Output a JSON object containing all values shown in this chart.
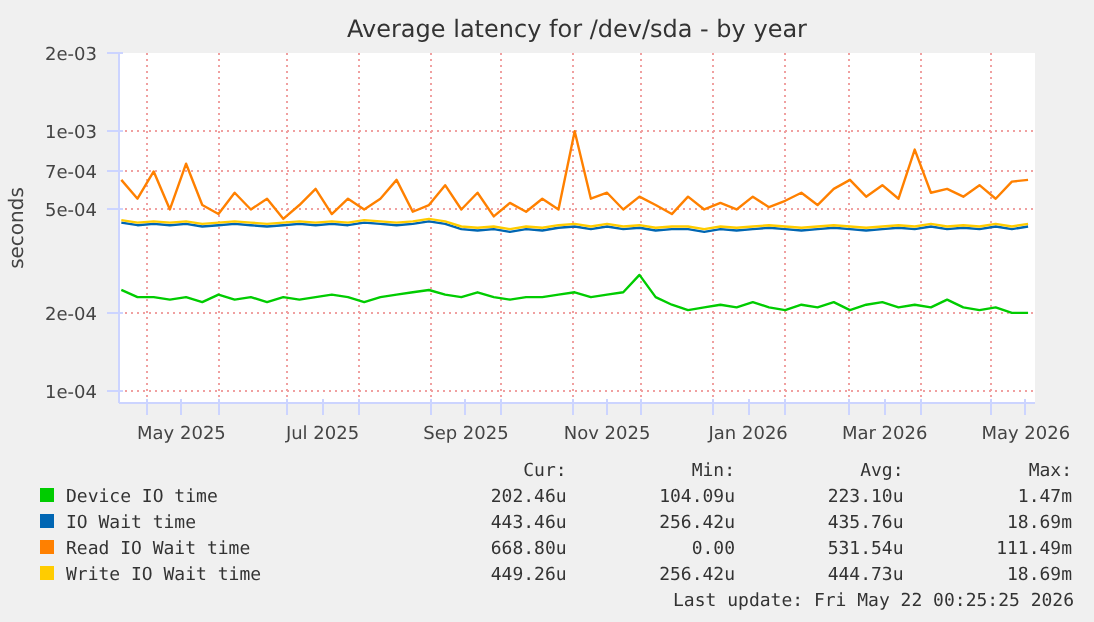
{
  "chart_data": {
    "type": "line",
    "title": "Average latency for /dev/sda - by year",
    "ylabel": "seconds",
    "log": "y",
    "grid": true,
    "legend": "bottom",
    "line_style": "solid",
    "x": [
      "2025-04-20",
      "2025-04-27",
      "2025-05-04",
      "2025-05-11",
      "2025-05-18",
      "2025-05-25",
      "2025-06-01",
      "2025-06-08",
      "2025-06-15",
      "2025-06-22",
      "2025-06-29",
      "2025-07-06",
      "2025-07-13",
      "2025-07-20",
      "2025-07-27",
      "2025-08-03",
      "2025-08-10",
      "2025-08-17",
      "2025-08-24",
      "2025-08-31",
      "2025-09-07",
      "2025-09-14",
      "2025-09-21",
      "2025-09-28",
      "2025-10-05",
      "2025-10-12",
      "2025-10-19",
      "2025-10-26",
      "2025-11-02",
      "2025-11-09",
      "2025-11-16",
      "2025-11-23",
      "2025-11-30",
      "2025-12-07",
      "2025-12-14",
      "2025-12-21",
      "2025-12-28",
      "2026-01-04",
      "2026-01-11",
      "2026-01-18",
      "2026-01-25",
      "2026-02-01",
      "2026-02-08",
      "2026-02-15",
      "2026-02-22",
      "2026-03-01",
      "2026-03-08",
      "2026-03-15",
      "2026-03-22",
      "2026-03-29",
      "2026-04-05",
      "2026-04-12",
      "2026-04-19",
      "2026-04-26",
      "2026-05-03",
      "2026-05-10",
      "2026-05-17"
    ],
    "xlim": [
      "2025-04-19",
      "2026-05-20"
    ],
    "xticks": [
      {
        "value": "2025-05-01",
        "label": null
      },
      {
        "value": "2025-05-16",
        "label": "May 2025"
      },
      {
        "value": "2025-06-01",
        "label": null
      },
      {
        "value": "2025-07-01",
        "label": null
      },
      {
        "value": "2025-07-16",
        "label": "Jul 2025"
      },
      {
        "value": "2025-08-01",
        "label": null
      },
      {
        "value": "2025-09-01",
        "label": null
      },
      {
        "value": "2025-09-16",
        "label": "Sep 2025"
      },
      {
        "value": "2025-10-01",
        "label": null
      },
      {
        "value": "2025-11-01",
        "label": null
      },
      {
        "value": "2025-11-16",
        "label": "Nov 2025"
      },
      {
        "value": "2025-12-01",
        "label": null
      },
      {
        "value": "2026-01-01",
        "label": null
      },
      {
        "value": "2026-01-16",
        "label": "Jan 2026"
      },
      {
        "value": "2026-02-01",
        "label": null
      },
      {
        "value": "2026-03-01",
        "label": null
      },
      {
        "value": "2026-03-16",
        "label": "Mar 2026"
      },
      {
        "value": "2026-04-01",
        "label": null
      },
      {
        "value": "2026-05-01",
        "label": null
      },
      {
        "value": "2026-05-16",
        "label": "May 2026"
      }
    ],
    "ylim": [
      9e-05,
      0.002
    ],
    "yticks": [
      {
        "value": 0.0001,
        "label": "1e-04"
      },
      {
        "value": 0.0002,
        "label": "2e-04"
      },
      {
        "value": 0.0005,
        "label": "5e-04"
      },
      {
        "value": 0.0007,
        "label": "7e-04"
      },
      {
        "value": 0.001,
        "label": "1e-03"
      },
      {
        "value": 0.002,
        "label": "2e-03"
      }
    ],
    "series": [
      {
        "name": "Device IO time",
        "color": "#00cc00",
        "values": [
          0.000245,
          0.00023,
          0.00023,
          0.000225,
          0.00023,
          0.00022,
          0.000235,
          0.000225,
          0.00023,
          0.00022,
          0.00023,
          0.000225,
          0.00023,
          0.000235,
          0.00023,
          0.00022,
          0.00023,
          0.000235,
          0.00024,
          0.000245,
          0.000235,
          0.00023,
          0.00024,
          0.00023,
          0.000225,
          0.00023,
          0.00023,
          0.000235,
          0.00024,
          0.00023,
          0.000235,
          0.00024,
          0.00028,
          0.00023,
          0.000215,
          0.000205,
          0.00021,
          0.000215,
          0.00021,
          0.00022,
          0.00021,
          0.000205,
          0.000215,
          0.00021,
          0.00022,
          0.000205,
          0.000215,
          0.00022,
          0.00021,
          0.000215,
          0.00021,
          0.000225,
          0.00021,
          0.000205,
          0.00021,
          0.0002,
          0.0002
        ]
      },
      {
        "name": "IO Wait time",
        "color": "#0066b3",
        "values": [
          0.000445,
          0.000435,
          0.00044,
          0.000435,
          0.00044,
          0.00043,
          0.000435,
          0.00044,
          0.000435,
          0.00043,
          0.000435,
          0.00044,
          0.000435,
          0.00044,
          0.000435,
          0.000445,
          0.00044,
          0.000435,
          0.00044,
          0.00045,
          0.00044,
          0.00042,
          0.000415,
          0.00042,
          0.00041,
          0.00042,
          0.000415,
          0.000425,
          0.00043,
          0.00042,
          0.00043,
          0.00042,
          0.000425,
          0.000415,
          0.00042,
          0.00042,
          0.00041,
          0.00042,
          0.000415,
          0.00042,
          0.000425,
          0.00042,
          0.000415,
          0.00042,
          0.000425,
          0.00042,
          0.000415,
          0.00042,
          0.000425,
          0.00042,
          0.00043,
          0.00042,
          0.000425,
          0.00042,
          0.00043,
          0.00042,
          0.00043
        ]
      },
      {
        "name": "Read IO Wait time",
        "color": "#ff8000",
        "values": [
          0.00065,
          0.00055,
          0.0007,
          0.0005,
          0.00075,
          0.00052,
          0.00048,
          0.00058,
          0.0005,
          0.00055,
          0.00046,
          0.00052,
          0.0006,
          0.00048,
          0.00055,
          0.0005,
          0.00055,
          0.00065,
          0.00049,
          0.00052,
          0.00062,
          0.0005,
          0.00058,
          0.00047,
          0.00053,
          0.00049,
          0.00055,
          0.0005,
          0.001,
          0.00055,
          0.00058,
          0.0005,
          0.00056,
          0.00052,
          0.00048,
          0.00056,
          0.0005,
          0.00053,
          0.0005,
          0.00056,
          0.00051,
          0.00054,
          0.00058,
          0.00052,
          0.0006,
          0.00065,
          0.00056,
          0.00062,
          0.00055,
          0.00085,
          0.00058,
          0.0006,
          0.00056,
          0.00062,
          0.00055,
          0.00064,
          0.00065
        ]
      },
      {
        "name": "Write IO Wait time",
        "color": "#ffcc00",
        "values": [
          0.000455,
          0.000445,
          0.00045,
          0.000445,
          0.00045,
          0.00044,
          0.000445,
          0.00045,
          0.000445,
          0.00044,
          0.000445,
          0.00045,
          0.000445,
          0.00045,
          0.000445,
          0.000455,
          0.00045,
          0.000445,
          0.00045,
          0.00046,
          0.00045,
          0.00043,
          0.000425,
          0.00043,
          0.00042,
          0.00043,
          0.000425,
          0.000435,
          0.00044,
          0.00043,
          0.00044,
          0.00043,
          0.000435,
          0.000425,
          0.00043,
          0.00043,
          0.00042,
          0.00043,
          0.000425,
          0.00043,
          0.000435,
          0.00043,
          0.000425,
          0.00043,
          0.000435,
          0.00043,
          0.000425,
          0.00043,
          0.000435,
          0.00043,
          0.00044,
          0.00043,
          0.000435,
          0.00043,
          0.00044,
          0.00043,
          0.00044
        ]
      }
    ],
    "annotations": [
      "Cur:",
      "Min:",
      "Avg:",
      "Max:",
      "202.46u",
      "104.09u",
      "223.10u",
      "1.47m",
      "443.46u",
      "256.42u",
      "435.76u",
      "18.69m",
      "668.80u",
      "0.00",
      "531.54u",
      "111.49m",
      "449.26u",
      "256.42u",
      "444.73u",
      "18.69m",
      "Last update: Fri May 22 00:25:25 2026"
    ]
  }
}
